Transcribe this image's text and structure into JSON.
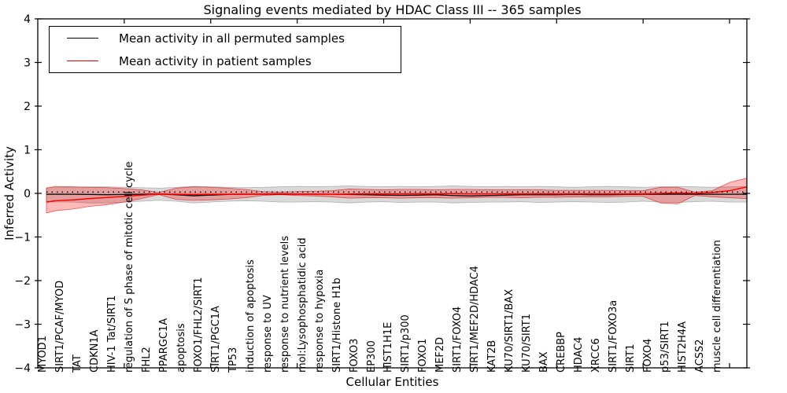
{
  "title": "Signaling events mediated by HDAC Class III -- 365 samples",
  "legend": {
    "items": [
      {
        "label": "Mean activity in all permuted samples",
        "color": "#000000"
      },
      {
        "label": "Mean activity in patient samples",
        "color": "#ff0000"
      }
    ]
  },
  "axes": {
    "xlabel": "Cellular Entities",
    "ylabel": "Inferred Activity",
    "yticks": [
      {
        "v": 4,
        "label": "4"
      },
      {
        "v": 3,
        "label": "3"
      },
      {
        "v": 2,
        "label": "2"
      },
      {
        "v": 1,
        "label": "1"
      },
      {
        "v": 0,
        "label": "0"
      },
      {
        "v": -1,
        "label": "−1"
      },
      {
        "v": -2,
        "label": "−2"
      },
      {
        "v": -3,
        "label": "−3"
      },
      {
        "v": -4,
        "label": "−4"
      }
    ],
    "x_major_ticks": [
      5,
      10,
      15,
      20,
      25,
      30,
      35,
      40
    ]
  },
  "chart_data": {
    "type": "line",
    "title": "Signaling events mediated by HDAC Class III -- 365 samples",
    "xlabel": "Cellular Entities",
    "ylabel": "Inferred Activity",
    "ylim": [
      -4,
      4
    ],
    "xlim": [
      0,
      41
    ],
    "grid": false,
    "legend_position": "upper left",
    "categories": [
      "MYOD1",
      "SIRT1/PCAF/MYOD",
      "TAT",
      "CDKN1A",
      "HIV-1 Tat/SIRT1",
      "regulation of S phase of mitotic cell cycle",
      "FHL2",
      "PPARGC1A",
      "apoptosis",
      "FOXO1/FHL2/SIRT1",
      "SIRT1/PGC1A",
      "TP53",
      "induction of apoptosis",
      "response to UV",
      "response to nutrient levels",
      "mol:Lysophosphatidic acid",
      "response to hypoxia",
      "SIRT1/Histone H1b",
      "FOXO3",
      "EP300",
      "HIST1H1E",
      "SIRT1/p300",
      "FOXO1",
      "MEF2D",
      "SIRT1/FOXO4",
      "SIRT1/MEF2D/HDAC4",
      "KAT2B",
      "KU70/SIRT1/BAX",
      "KU70/SIRT1",
      "BAX",
      "CREBBP",
      "HDAC4",
      "XRCC6",
      "SIRT1/FOXO3a",
      "SIRT1",
      "FOXO4",
      "p53/SIRT1",
      "HIST2H4A",
      "ACSS2",
      "muscle cell differentiation"
    ],
    "x": [
      0.5,
      1,
      2,
      3,
      4,
      5,
      6,
      7,
      8,
      9,
      10,
      11,
      12,
      13,
      14,
      15,
      16,
      17,
      18,
      19,
      20,
      21,
      22,
      23,
      24,
      25,
      26,
      27,
      28,
      29,
      30,
      31,
      32,
      33,
      34,
      35,
      36,
      37,
      38,
      39,
      40,
      41
    ],
    "series": [
      {
        "name": "Mean activity in all permuted samples",
        "color": "#000000",
        "width": 1.3,
        "values": [
          -0.02,
          -0.02,
          -0.02,
          -0.025,
          -0.03,
          -0.025,
          -0.02,
          -0.015,
          -0.03,
          -0.055,
          -0.04,
          -0.025,
          -0.02,
          -0.02,
          -0.02,
          -0.02,
          -0.02,
          -0.02,
          -0.025,
          -0.03,
          -0.04,
          -0.045,
          -0.04,
          -0.03,
          -0.05,
          -0.06,
          -0.05,
          -0.04,
          -0.03,
          -0.03,
          -0.03,
          -0.025,
          -0.03,
          -0.03,
          -0.025,
          -0.02,
          -0.02,
          -0.02,
          -0.02,
          -0.02,
          -0.02,
          -0.02
        ]
      },
      {
        "name": "Mean activity in patient samples",
        "color": "#ff0000",
        "width": 1.5,
        "values": [
          -0.2,
          -0.17,
          -0.15,
          -0.12,
          -0.095,
          -0.07,
          -0.04,
          -0.015,
          -0.02,
          -0.025,
          -0.02,
          -0.02,
          -0.015,
          -0.015,
          -0.01,
          -0.015,
          -0.015,
          -0.02,
          -0.015,
          -0.01,
          -0.012,
          -0.012,
          -0.01,
          -0.012,
          -0.005,
          -0.012,
          -0.012,
          -0.01,
          -0.012,
          -0.01,
          -0.012,
          -0.01,
          -0.01,
          -0.012,
          -0.01,
          -0.01,
          0.0,
          0.01,
          0.0,
          0.02,
          0.06,
          0.15
        ]
      }
    ],
    "bands": [
      {
        "name": "permuted-activity-range",
        "fill": "rgba(128,128,128,0.30)",
        "stroke": "rgba(130,130,130,0.55)",
        "upper": [
          0.13,
          0.14,
          0.14,
          0.15,
          0.15,
          0.14,
          0.13,
          0.12,
          0.14,
          0.16,
          0.15,
          0.14,
          0.13,
          0.14,
          0.15,
          0.16,
          0.15,
          0.16,
          0.17,
          0.16,
          0.15,
          0.16,
          0.15,
          0.16,
          0.17,
          0.16,
          0.15,
          0.16,
          0.15,
          0.16,
          0.15,
          0.14,
          0.15,
          0.16,
          0.15,
          0.14,
          0.15,
          0.16,
          0.15,
          0.14,
          0.15,
          0.15
        ],
        "lower": [
          -0.18,
          -0.2,
          -0.2,
          -0.22,
          -0.22,
          -0.2,
          -0.18,
          -0.16,
          -0.18,
          -0.22,
          -0.2,
          -0.18,
          -0.17,
          -0.18,
          -0.2,
          -0.2,
          -0.19,
          -0.2,
          -0.22,
          -0.2,
          -0.19,
          -0.21,
          -0.2,
          -0.2,
          -0.22,
          -0.21,
          -0.2,
          -0.2,
          -0.19,
          -0.21,
          -0.2,
          -0.19,
          -0.2,
          -0.21,
          -0.2,
          -0.18,
          -0.2,
          -0.21,
          -0.19,
          -0.18,
          -0.2,
          -0.2
        ]
      },
      {
        "name": "patient-activity-range",
        "fill": "rgba(255,0,0,0.27)",
        "stroke": "rgba(220,0,0,0.6)",
        "upper": [
          0.12,
          0.16,
          0.15,
          0.14,
          0.13,
          0.11,
          0.08,
          0.02,
          0.12,
          0.15,
          0.14,
          0.12,
          0.09,
          0.04,
          0.03,
          0.04,
          0.05,
          0.06,
          0.1,
          0.09,
          0.08,
          0.09,
          0.09,
          0.08,
          0.09,
          0.09,
          0.08,
          0.08,
          0.08,
          0.08,
          0.07,
          0.07,
          0.07,
          0.07,
          0.06,
          0.06,
          0.14,
          0.14,
          0.03,
          0.06,
          0.25,
          0.35
        ],
        "lower": [
          -0.45,
          -0.4,
          -0.36,
          -0.3,
          -0.26,
          -0.2,
          -0.12,
          -0.03,
          -0.14,
          -0.16,
          -0.15,
          -0.13,
          -0.1,
          -0.05,
          -0.03,
          -0.05,
          -0.06,
          -0.08,
          -0.11,
          -0.1,
          -0.1,
          -0.11,
          -0.1,
          -0.1,
          -0.11,
          -0.1,
          -0.09,
          -0.09,
          -0.1,
          -0.09,
          -0.09,
          -0.08,
          -0.08,
          -0.08,
          -0.07,
          -0.07,
          -0.22,
          -0.24,
          -0.05,
          -0.08,
          -0.1,
          -0.12
        ]
      }
    ],
    "reference_line": {
      "y": 0.03,
      "style": "dotted",
      "color": "#000000"
    }
  }
}
